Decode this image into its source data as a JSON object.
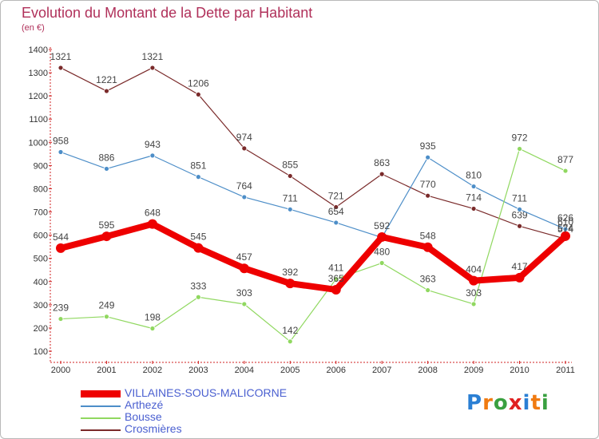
{
  "title": "Evolution du Montant de la Dette par Habitant",
  "subtitle": "(en €)",
  "logo": {
    "text": "Proxiti",
    "letters": [
      "P",
      "r",
      "o",
      "x",
      "i",
      "t",
      "i"
    ],
    "colors": [
      "#2a7fd4",
      "#f07a10",
      "#3aa040",
      "#e02020",
      "#2a7fd4",
      "#f07a10",
      "#3aa040"
    ]
  },
  "chart_data": {
    "type": "line",
    "x": [
      "2000",
      "2001",
      "2002",
      "2003",
      "2004",
      "2005",
      "2006",
      "2007",
      "2008",
      "2009",
      "2010",
      "2011"
    ],
    "ylim": [
      100,
      1400
    ],
    "yticks": [
      100,
      200,
      300,
      400,
      500,
      600,
      700,
      800,
      900,
      1000,
      1100,
      1200,
      1300,
      1400
    ],
    "grid": false,
    "legend_position": "bottom-left",
    "series": [
      {
        "name": "VILLAINES-SOUS-MALICORNE",
        "color": "#ee0000",
        "values": [
          544,
          595,
          648,
          545,
          457,
          392,
          365,
          592,
          548,
          404,
          417,
          596
        ],
        "labels": [
          "544",
          "595",
          "648",
          "545",
          "457",
          "392",
          "365",
          "592",
          "548",
          "404",
          "417",
          ""
        ]
      },
      {
        "name": "Arthezé",
        "color": "#4d8ec8",
        "values": [
          958,
          886,
          943,
          851,
          764,
          711,
          654,
          590,
          935,
          810,
          711,
          626
        ],
        "labels": [
          "958",
          "886",
          "943",
          "851",
          "764",
          "711",
          "654",
          "",
          "935",
          "810",
          "711",
          "626"
        ]
      },
      {
        "name": "Bousse",
        "color": "#90d860",
        "values": [
          239,
          249,
          198,
          333,
          303,
          142,
          411,
          480,
          363,
          303,
          972,
          877
        ],
        "labels": [
          "239",
          "249",
          "198",
          "333",
          "303",
          "142",
          "411",
          "480",
          "363",
          "303",
          "972",
          "877"
        ]
      },
      {
        "name": "Crosmières",
        "color": "#7a2a2a",
        "values": [
          1321,
          1221,
          1321,
          1206,
          974,
          855,
          721,
          863,
          770,
          714,
          639,
          584
        ],
        "labels": [
          "1321",
          "1221",
          "1321",
          "1206",
          "974",
          "855",
          "721",
          "863",
          "770",
          "714",
          "639",
          "584"
        ]
      }
    ],
    "extra_labels": [
      "574",
      "610"
    ]
  }
}
